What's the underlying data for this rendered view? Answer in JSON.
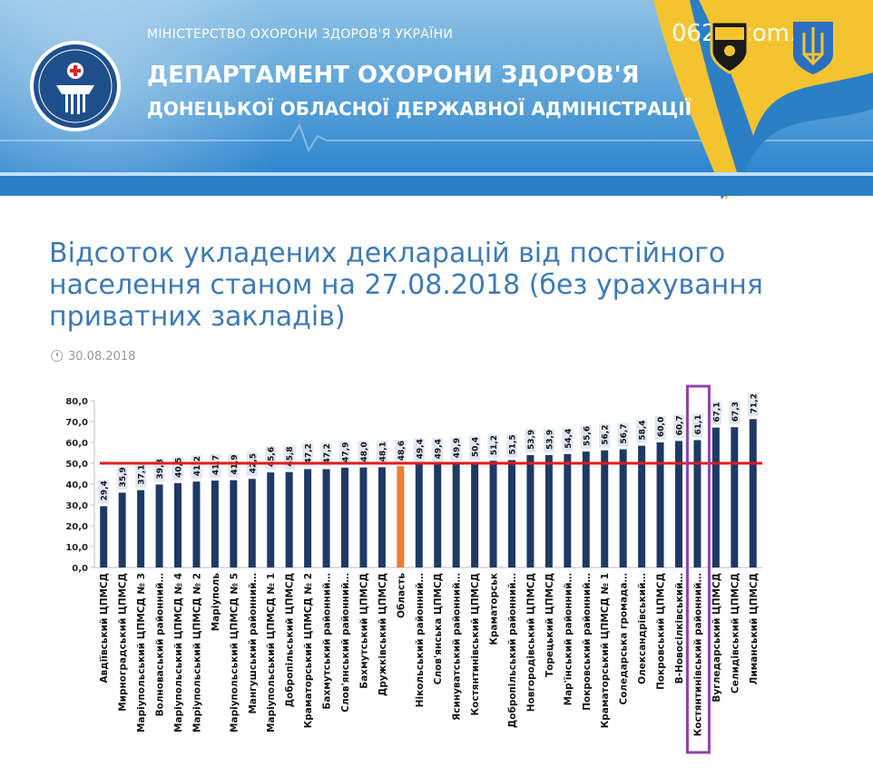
{
  "header": {
    "ministry": "МІНІСТЕРСТВО ОХОРОНИ ЗДОРОВ'Я УКРАЇНИ",
    "department_line1": "ДЕПАРТАМЕНТ ОХОРОНИ ЗДОРОВ'Я",
    "department_line2": "ДОНЕЦЬКОЇ ОБЛАСНОЇ ДЕРЖАВНОЇ АДМІНІСТРАЦІЇ",
    "site": "0629.com.ua",
    "colors": {
      "primary": "#2b7fc5",
      "flag_yellow": "#f4c430"
    }
  },
  "article": {
    "title": "Відсоток укладених декларацій від постійного населення станом на 27.08.2018 (без урахування приватних закладів)",
    "date": "30.08.2018"
  },
  "chart_data": {
    "type": "bar",
    "title": "",
    "xlabel": "",
    "ylabel": "",
    "ylim": [
      0,
      80
    ],
    "yticks": [
      "0,0",
      "10,0",
      "20,0",
      "30,0",
      "40,0",
      "50,0",
      "60,0",
      "70,0",
      "80,0"
    ],
    "grid": false,
    "reference_line": 50,
    "highlighted_category": "Костянтинівський районний…",
    "categories": [
      "Авдіївський ЦПМСД",
      "Мирноградський ЦПМСД",
      "Маріупольський ЦПМСД № 3",
      "Волноваський районний…",
      "Маріупольський ЦПМСД № 4",
      "Маріупольський ЦПМСД № 2",
      "Маріуполь",
      "Маріупольський ЦПМСД № 5",
      "Мангушський районний…",
      "Маріупольський ЦПМСД № 1",
      "Добропільський ЦПМСД",
      "Краматорський ЦПМСД № 2",
      "Бахмутський районний…",
      "Слов'янський районний…",
      "Бахмутський ЦПМСД",
      "Дружківський ЦПМСД",
      "Область",
      "Нікольський районний…",
      "Слов'янська ЦПМСД",
      "Ясинуватський районний…",
      "Костянтинівський ЦПМСД",
      "Краматорськ",
      "Добропільський районний…",
      "Новгородівський ЦПМСД",
      "Торецький ЦПМСД",
      "Мар'їнський районний…",
      "Покровський районний…",
      "Краматорський ЦПМСД № 1",
      "Соледарська громада…",
      "Олександрівський…",
      "Покровський ЦПМСД",
      "В-Новосілківський…",
      "Костянтинівський районний…",
      "Вугледарський ЦПМСД",
      "Селидівський ЦПМСД",
      "Лиманський ЦПМСД"
    ],
    "values": [
      29.4,
      35.9,
      37.1,
      39.8,
      40.5,
      41.2,
      41.7,
      41.9,
      42.5,
      45.6,
      45.8,
      47.2,
      47.2,
      47.9,
      48.0,
      48.1,
      48.6,
      49.4,
      49.4,
      49.9,
      50.4,
      51.2,
      51.5,
      53.9,
      53.9,
      54.4,
      55.6,
      56.2,
      56.7,
      58.4,
      60.0,
      60.7,
      61.1,
      67.1,
      67.3,
      71.2
    ],
    "value_labels": [
      "29,4",
      "35,9",
      "37,1",
      "39,8",
      "40,5",
      "41,2",
      "41,7",
      "41,9",
      "42,5",
      "45,6",
      "45,8",
      "47,2",
      "47,2",
      "47,9",
      "48,0",
      "48,1",
      "48,6",
      "49,4",
      "49,4",
      "49,9",
      "50,4",
      "51,2",
      "51,5",
      "53,9",
      "53,9",
      "54,4",
      "55,6",
      "56,2",
      "56,7",
      "58,4",
      "60,0",
      "60,7",
      "61,1",
      "67,1",
      "67,3",
      "71,2"
    ],
    "colors": {
      "bar": "#1e3a64",
      "highlight_bar": "#ed7d31",
      "reference_line": "#e01b1b",
      "highlight_box": "#8e44ad",
      "label_bg": "#dfe7f2"
    }
  }
}
